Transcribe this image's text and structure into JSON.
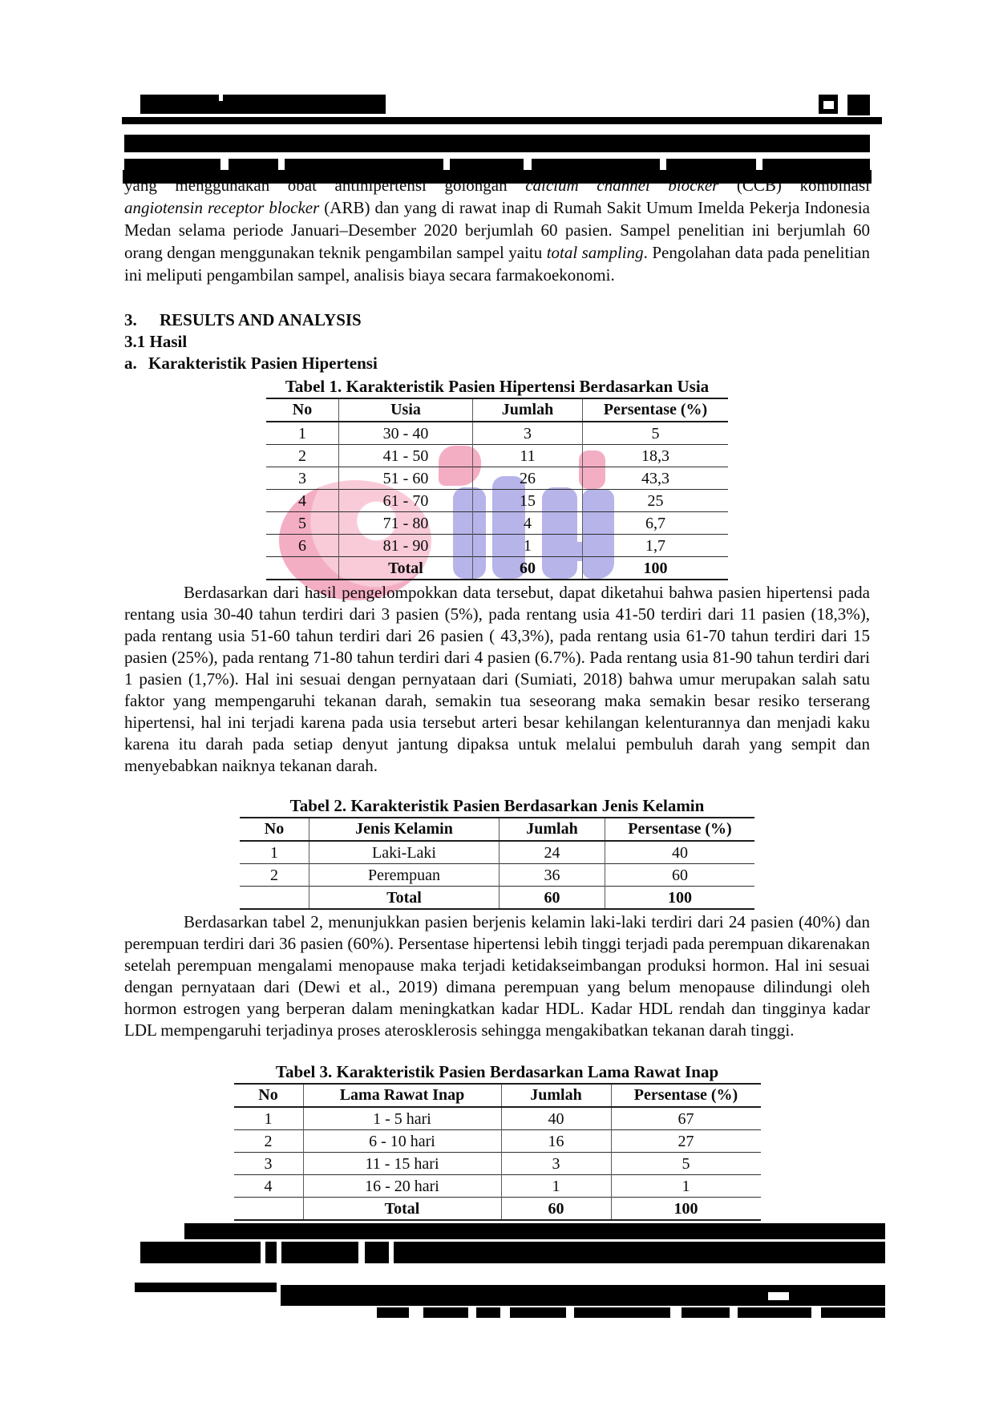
{
  "intro_cut_line": [
    {
      "t": "yang menggunakan obat antihipertensi golongan "
    },
    {
      "t": "calcium channel blocker",
      "i": true
    },
    {
      "t": " (CCB) kombinasi"
    }
  ],
  "para1": [
    {
      "t": "angiotensin receptor blocker",
      "i": true
    },
    {
      "t": " (ARB) dan yang di rawat inap di Rumah Sakit Umum Imelda Pekerja Indonesia Medan selama periode Januari–Desember 2020 berjumlah 60 pasien. Sampel penelitian ini berjumlah 60 orang dengan menggunakan teknik pengambilan sampel yaitu "
    },
    {
      "t": "total sampling",
      "i": true
    },
    {
      "t": ". Pengolahan data pada penelitian ini meliputi pengambilan sampel, analisis biaya secara farmakoekonomi."
    }
  ],
  "sections": {
    "results_number": "3.",
    "results_title": "RESULTS AND ANALYSIS",
    "hasil": "3.1 Hasil",
    "item_letter": "a.",
    "item_title": "Karakteristik Pasien Hipertensi"
  },
  "tables": {
    "t1": {
      "caption": "Tabel 1. Karakteristik Pasien Hipertensi Berdasarkan Usia",
      "headers": [
        "No",
        "Usia",
        "Jumlah",
        "Persentase (%)"
      ],
      "rows": [
        [
          "1",
          "30 - 40",
          "3",
          "5"
        ],
        [
          "2",
          "41 - 50",
          "11",
          "18,3"
        ],
        [
          "3",
          "51 - 60",
          "26",
          "43,3"
        ],
        [
          "4",
          "61 - 70",
          "15",
          "25"
        ],
        [
          "5",
          "71 - 80",
          "4",
          "6,7"
        ],
        [
          "6",
          "81 - 90",
          "1",
          "1,7"
        ]
      ],
      "total_row": [
        "",
        "Total",
        "60",
        "100"
      ]
    },
    "t2": {
      "caption": "Tabel 2. Karakteristik Pasien Berdasarkan Jenis Kelamin",
      "headers": [
        "No",
        "Jenis Kelamin",
        "Jumlah",
        "Persentase (%)"
      ],
      "rows": [
        [
          "1",
          "Laki-Laki",
          "24",
          "40"
        ],
        [
          "2",
          "Perempuan",
          "36",
          "60"
        ]
      ],
      "total_row": [
        "",
        "Total",
        "60",
        "100"
      ]
    },
    "t3": {
      "caption": "Tabel 3. Karakteristik Pasien Berdasarkan Lama Rawat Inap",
      "headers": [
        "No",
        "Lama Rawat Inap",
        "Jumlah",
        "Persentase (%)"
      ],
      "rows": [
        [
          "1",
          "1 - 5 hari",
          "40",
          "67"
        ],
        [
          "2",
          "6 - 10 hari",
          "16",
          "27"
        ],
        [
          "3",
          "11 - 15 hari",
          "3",
          "5"
        ],
        [
          "4",
          "16 - 20 hari",
          "1",
          "1"
        ]
      ],
      "total_row": [
        "",
        "Total",
        "60",
        "100"
      ]
    }
  },
  "para2": "Berdasarkan dari hasil pengelompokkan data tersebut, dapat diketahui bahwa pasien hipertensi pada rentang usia 30-40 tahun terdiri dari 3 pasien (5%), pada rentang usia 41-50 terdiri dari 11 pasien (18,3%), pada rentang usia 51-60 tahun terdiri dari 26 pasien ( 43,3%), pada rentang usia 61-70 tahun terdiri dari 15 pasien (25%), pada rentang 71-80 tahun terdiri dari 4 pasien (6.7%). Pada rentang usia 81-90 tahun terdiri dari 1 pasien (1,7%). Hal ini sesuai dengan pernyataan dari (Sumiati, 2018) bahwa umur merupakan salah satu faktor yang mempengaruhi tekanan darah, semakin tua seseorang maka semakin besar resiko terserang hipertensi, hal ini terjadi karena pada usia tersebut arteri besar kehilangan kelenturannya dan menjadi kaku karena itu darah pada setiap denyut jantung dipaksa untuk melalui pembuluh darah yang sempit dan menyebabkan naiknya tekanan darah.",
  "para3": "Berdasarkan tabel 2, menunjukkan pasien berjenis kelamin laki-laki terdiri dari 24 pasien (40%) dan perempuan terdiri dari 36 pasien (60%). Persentase hipertensi lebih tinggi terjadi pada perempuan dikarenakan setelah perempuan mengalami menopause maka terjadi ketidakseimbangan produksi hormon. Hal ini sesuai dengan pernyataan dari (Dewi et al., 2019) dimana perempuan yang belum menopause dilindungi oleh hormon estrogen yang berperan dalam meningkatkan kadar HDL. Kadar HDL rendah dan tingginya kadar LDL mempengaruhi terjadinya proses aterosklerosis sehingga mengakibatkan tekanan darah tinggi.",
  "watermark": {
    "name": "jifi-journal-logo",
    "colors": {
      "pink": "#F4AEC4",
      "pink_light": "#F9CBD9",
      "blue": "#B7B4EA"
    }
  }
}
